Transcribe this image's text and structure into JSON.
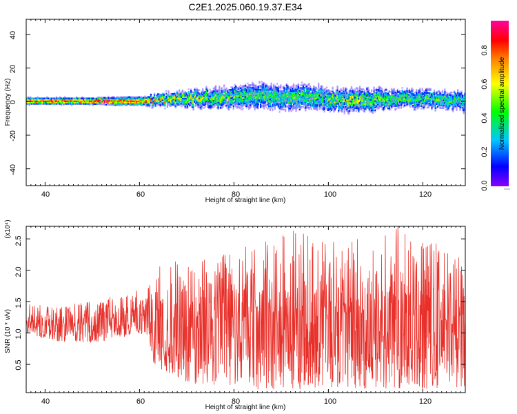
{
  "title": "C2E1.2025.060.19.37.E34",
  "chart_data": [
    {
      "type": "heatmap",
      "xlabel": "Height of straight line (km)",
      "ylabel": "Frequency (Hz)",
      "xlim": [
        36,
        129
      ],
      "ylim": [
        -50,
        49
      ],
      "x_ticks": [
        "40",
        "60",
        "80",
        "100",
        "120"
      ],
      "y_ticks": [
        "-40",
        "-20",
        "0",
        "20",
        "40"
      ],
      "colorbar": {
        "label": "Normalized spectral amplitude",
        "range": [
          0,
          0.98
        ],
        "ticks": [
          "0.0",
          "0.2",
          "0.4",
          "0.6",
          "0.8"
        ],
        "colormap": [
          "#8a00ff",
          "#0000ff",
          "#00c8ff",
          "#00ff00",
          "#ffff00",
          "#ff8000",
          "#ff0000",
          "#ff00a0"
        ]
      },
      "ridge": {
        "x": [
          36,
          40,
          45,
          50,
          55,
          60,
          62,
          65,
          70,
          75,
          80,
          84,
          88,
          92,
          96,
          100,
          105,
          110,
          115,
          120,
          125,
          129
        ],
        "frequency_center": [
          0,
          0,
          0,
          0,
          0,
          0,
          0,
          0.5,
          1.5,
          2,
          2.5,
          3,
          2.5,
          2,
          2.5,
          1,
          0.5,
          1,
          1.5,
          1,
          0.5,
          0
        ],
        "frequency_halfwidth": [
          2,
          2,
          2,
          2,
          2.5,
          2.5,
          3,
          4,
          5,
          6,
          7,
          8,
          8,
          8,
          8,
          7,
          7,
          7,
          6,
          6,
          6,
          6
        ],
        "peak_amplitude": [
          0.95,
          0.95,
          0.9,
          0.9,
          0.85,
          0.85,
          0.75,
          0.65,
          0.6,
          0.55,
          0.5,
          0.45,
          0.45,
          0.45,
          0.45,
          0.5,
          0.6,
          0.5,
          0.45,
          0.45,
          0.45,
          0.4
        ]
      }
    },
    {
      "type": "line",
      "xlabel": "Height of straight line (km)",
      "ylabel": "SNR (10 * v/v)",
      "y_multiplier": "(x10⁴)",
      "xlim": [
        36,
        129
      ],
      "ylim": [
        0.05,
        2.7
      ],
      "x_ticks": [
        "40",
        "60",
        "80",
        "100",
        "120"
      ],
      "y_ticks": [
        "0.5",
        "1.0",
        "1.5",
        "2.0",
        "2.5"
      ],
      "series": [
        {
          "color": "#e8302a",
          "x": [
            36,
            40,
            45,
            50,
            55,
            60,
            62,
            63,
            65,
            70,
            75,
            80,
            85,
            90,
            95,
            100,
            105,
            110,
            115,
            120,
            125,
            129
          ],
          "center": [
            1.2,
            1.1,
            1.15,
            1.1,
            1.25,
            1.3,
            1.4,
            1.2,
            1.0,
            1.1,
            1.2,
            1.2,
            1.3,
            1.2,
            1.25,
            1.2,
            1.3,
            1.25,
            1.3,
            1.2,
            1.2,
            1.2
          ],
          "envelope_low": [
            1.0,
            0.9,
            0.85,
            0.85,
            0.9,
            1.0,
            0.9,
            0.5,
            0.4,
            0.2,
            0.15,
            0.15,
            0.1,
            0.1,
            0.1,
            0.1,
            0.1,
            0.1,
            0.1,
            0.1,
            0.1,
            0.1
          ],
          "envelope_high": [
            1.5,
            1.45,
            1.5,
            1.5,
            1.6,
            1.7,
            1.8,
            2.2,
            2.1,
            2.2,
            2.2,
            2.3,
            2.5,
            2.7,
            2.6,
            2.5,
            2.5,
            2.55,
            2.7,
            2.6,
            2.5,
            2.1
          ]
        }
      ]
    }
  ]
}
